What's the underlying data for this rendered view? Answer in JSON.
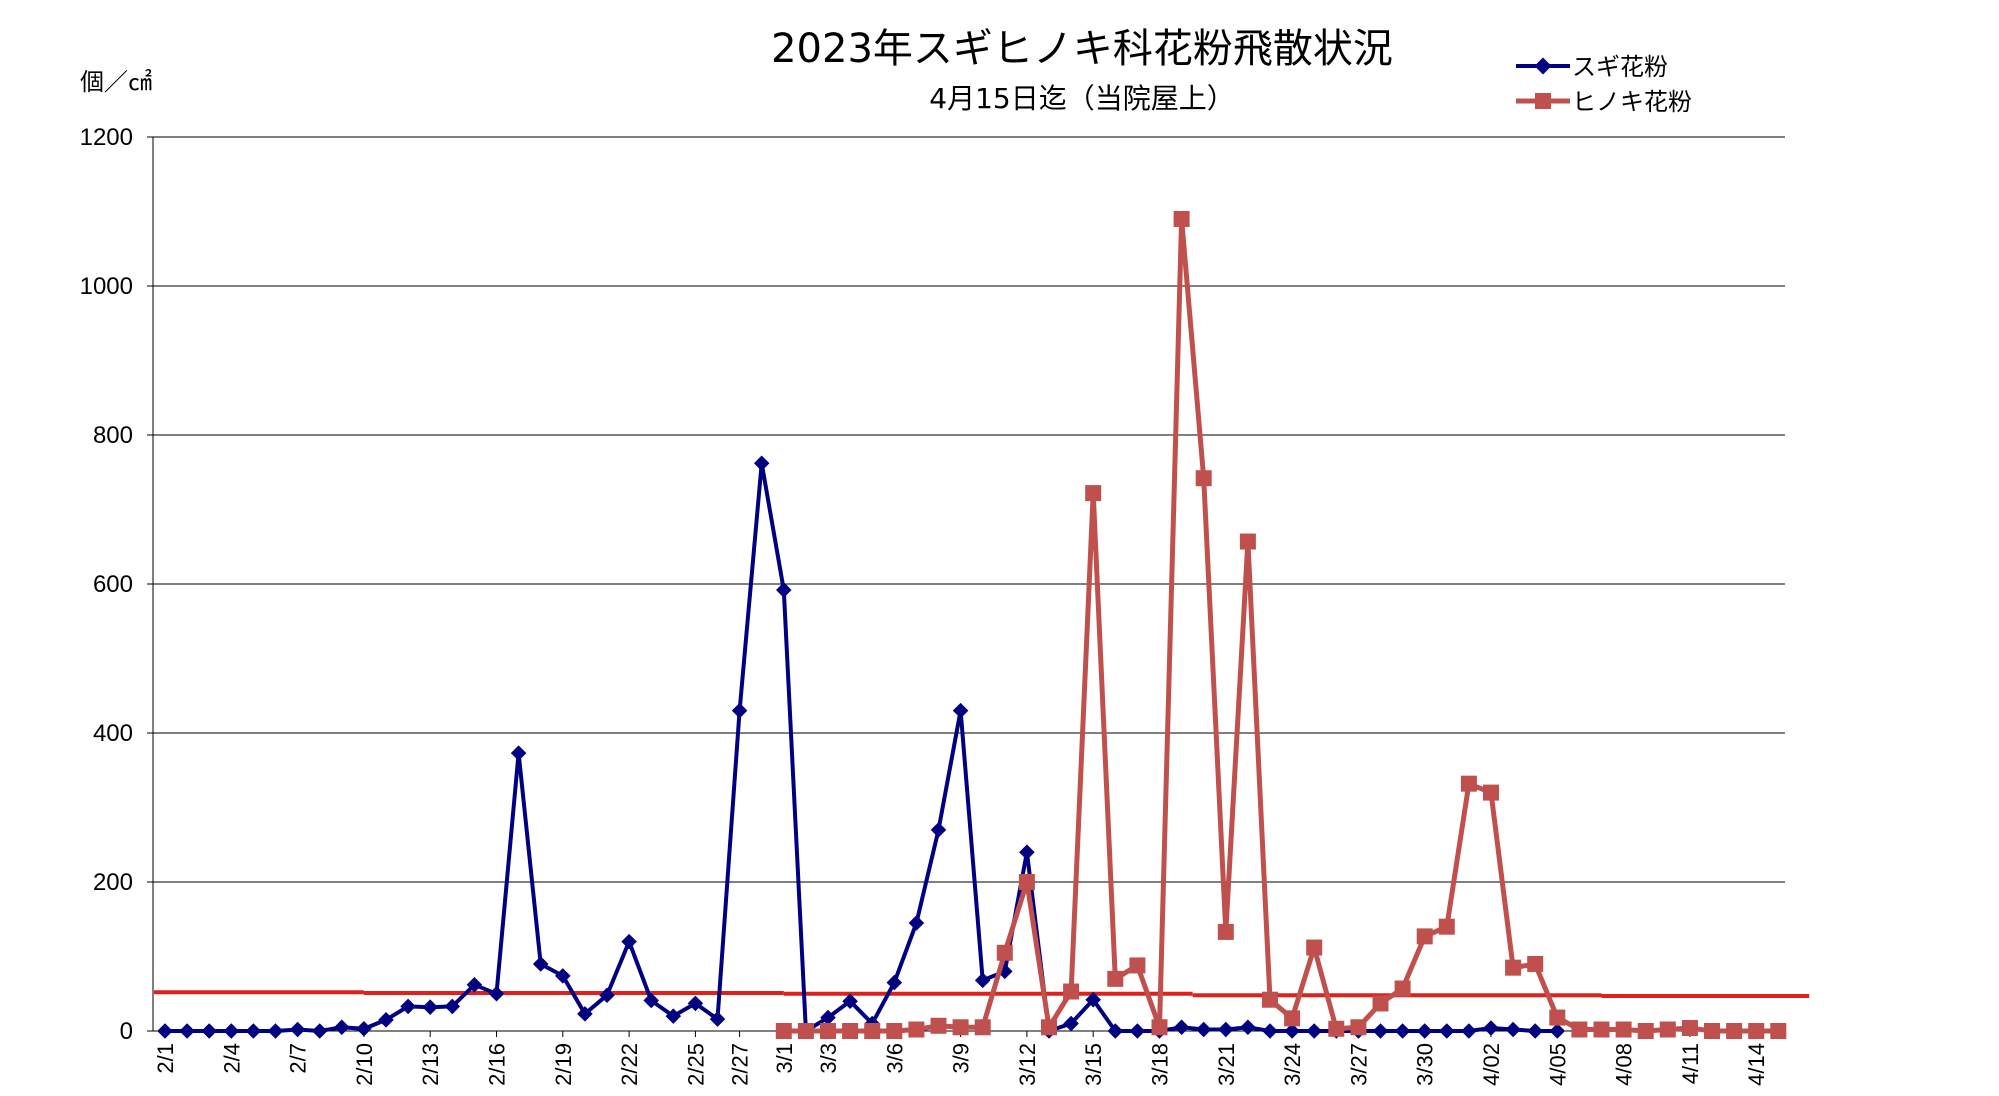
{
  "chart_data": {
    "type": "line",
    "title": "2023年スギヒノキ科花粉飛散状況",
    "subtitle": "4月15日迄（当院屋上）",
    "ylabel": "個／㎠",
    "ylim": [
      0,
      1200
    ],
    "yticks": [
      0,
      200,
      400,
      600,
      800,
      1000,
      1200
    ],
    "grid": true,
    "legend_position": "top-right",
    "x_tick_labels": [
      {
        "index": 0,
        "label": "2/1"
      },
      {
        "index": 3,
        "label": "2/4"
      },
      {
        "index": 6,
        "label": "2/7"
      },
      {
        "index": 9,
        "label": "2/10"
      },
      {
        "index": 12,
        "label": "2/13"
      },
      {
        "index": 15,
        "label": "2/16"
      },
      {
        "index": 18,
        "label": "2/19"
      },
      {
        "index": 21,
        "label": "2/22"
      },
      {
        "index": 24,
        "label": "2/25"
      },
      {
        "index": 26,
        "label": "2/27"
      },
      {
        "index": 28,
        "label": "3/1"
      },
      {
        "index": 30,
        "label": "3/3"
      },
      {
        "index": 33,
        "label": "3/6"
      },
      {
        "index": 36,
        "label": "3/9"
      },
      {
        "index": 39,
        "label": "3/12"
      },
      {
        "index": 42,
        "label": "3/15"
      },
      {
        "index": 45,
        "label": "3/18"
      },
      {
        "index": 48,
        "label": "3/21"
      },
      {
        "index": 51,
        "label": "3/24"
      },
      {
        "index": 54,
        "label": "3/27"
      },
      {
        "index": 57,
        "label": "3/30"
      },
      {
        "index": 60,
        "label": "4/02"
      },
      {
        "index": 63,
        "label": "4/05"
      },
      {
        "index": 66,
        "label": "4/08"
      },
      {
        "index": 69,
        "label": "4/11"
      },
      {
        "index": 72,
        "label": "4/14"
      }
    ],
    "series": [
      {
        "name": "スギ花粉",
        "color": "#000080",
        "marker": "diamond",
        "start_index": 0,
        "values": [
          0,
          0,
          0,
          0,
          0,
          0,
          2,
          0,
          5,
          3,
          15,
          33,
          32,
          33,
          62,
          50,
          373,
          90,
          74,
          23,
          48,
          120,
          41,
          20,
          37,
          16,
          430,
          762,
          592,
          0,
          18,
          40,
          10,
          65,
          145,
          270,
          430,
          68,
          80,
          240,
          0,
          10,
          42,
          0,
          0,
          0,
          5,
          2,
          2,
          5,
          0,
          0,
          0,
          0,
          0,
          0,
          0,
          0,
          0,
          0,
          4,
          2,
          0,
          0
        ]
      },
      {
        "name": "ヒノキ花粉",
        "color": "#c0504d",
        "marker": "square",
        "start_index": 28,
        "values": [
          0,
          0,
          0,
          0,
          0,
          0,
          2,
          7,
          5,
          5,
          105,
          200,
          5,
          53,
          722,
          70,
          88,
          5,
          1090,
          742,
          133,
          657,
          42,
          17,
          112,
          3,
          5,
          37,
          57,
          127,
          140,
          332,
          320,
          85,
          90,
          18,
          2,
          2,
          2,
          0,
          2,
          4,
          0,
          0,
          0,
          0
        ]
      },
      {
        "name": "",
        "color": "#e0201b",
        "marker": "none",
        "segments": [
          {
            "from": -0.5,
            "to": 9,
            "value": 52
          },
          {
            "from": 9,
            "to": 28,
            "value": 51
          },
          {
            "from": 28,
            "to": 46.5,
            "value": 50
          },
          {
            "from": 46.5,
            "to": 65,
            "value": 48
          },
          {
            "from": 65,
            "to": 74.4,
            "value": 47
          }
        ]
      }
    ]
  }
}
